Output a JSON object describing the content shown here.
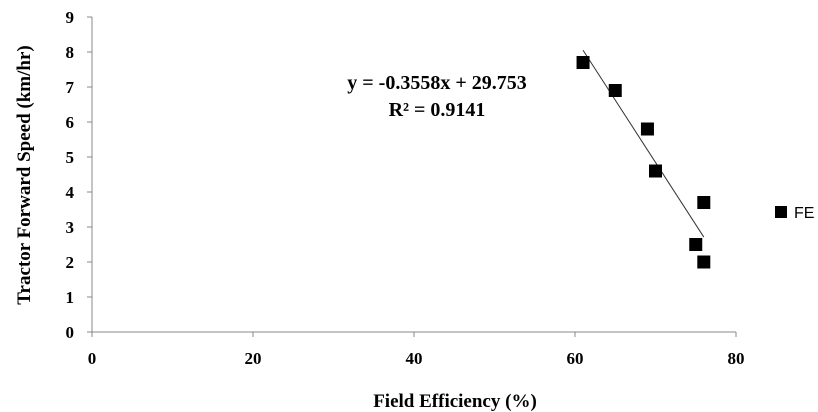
{
  "chart_data": {
    "type": "scatter",
    "xlabel": "Field Efficiency (%)",
    "ylabel": "Tractor  Forward Speed (km/hr)",
    "xlim": [
      0,
      80
    ],
    "ylim": [
      0,
      9
    ],
    "x_ticks": [
      0,
      20,
      40,
      60,
      80
    ],
    "y_ticks": [
      0,
      1,
      2,
      3,
      4,
      5,
      6,
      7,
      8,
      9
    ],
    "x_tick_labels": [
      "0",
      "20",
      "40",
      "60",
      "80"
    ],
    "y_tick_labels": [
      "0",
      "1",
      "2",
      "3",
      "4",
      "5",
      "6",
      "7",
      "8",
      "9"
    ],
    "grid": false,
    "legend_position": "right",
    "series": [
      {
        "name": "FE",
        "color": "#000000",
        "marker": "square",
        "points": [
          {
            "x": 61,
            "y": 7.7
          },
          {
            "x": 65,
            "y": 6.9
          },
          {
            "x": 69,
            "y": 5.8
          },
          {
            "x": 70,
            "y": 4.6
          },
          {
            "x": 75,
            "y": 2.5
          },
          {
            "x": 76,
            "y": 3.7
          },
          {
            "x": 76,
            "y": 2.0
          }
        ]
      }
    ],
    "trendline": {
      "type": "linear",
      "slope": -0.3558,
      "intercept": 29.753,
      "x_range": [
        61,
        76
      ],
      "color": "#333333"
    },
    "annotations": [
      {
        "id": "equation",
        "text": "y = -0.3558x + 29.753"
      },
      {
        "id": "r-squared",
        "text": "R² = 0.9141"
      }
    ]
  }
}
